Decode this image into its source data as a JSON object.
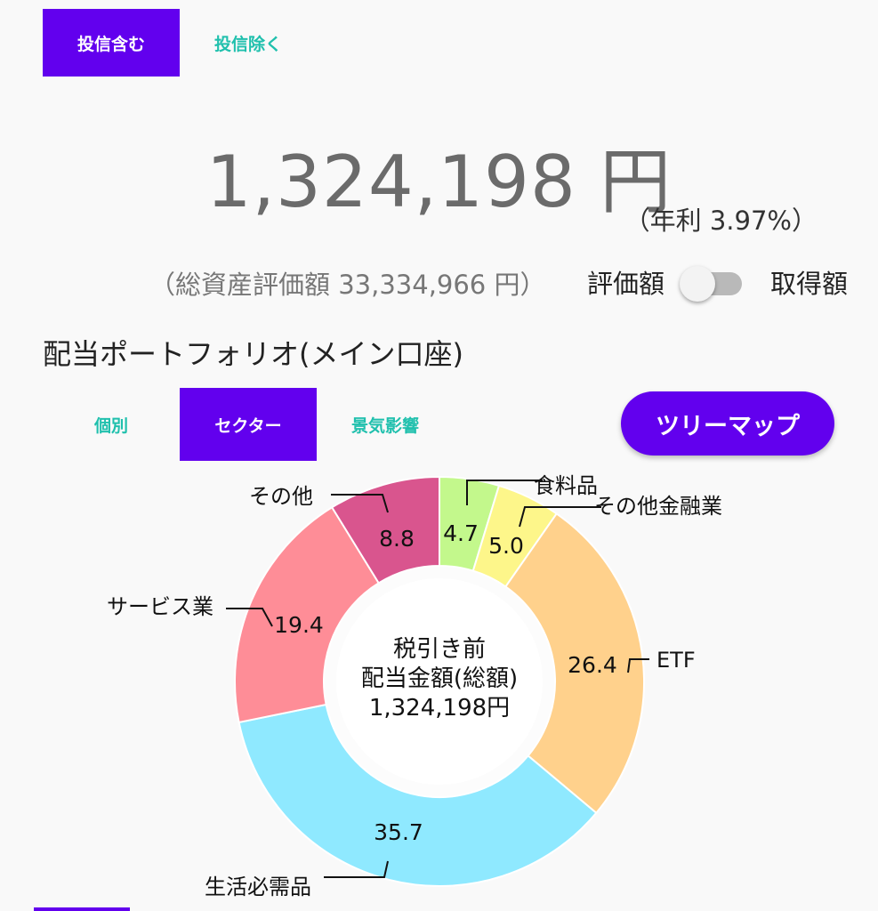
{
  "filter_tabs": {
    "include_funds": "投信含む",
    "exclude_funds": "投信除く"
  },
  "summary": {
    "amount": "1,324,198 円",
    "annual_rate": "（年利 3.97%）",
    "total_assets": "（総資産評価額 33,334,966 円）"
  },
  "toggle": {
    "left_label": "評価額",
    "right_label": "取得額",
    "state": "off"
  },
  "section_title": "配当ポートフォリオ(メイン口座)",
  "view_tabs": {
    "individual": "個別",
    "sector": "セクター",
    "economy": "景気影響"
  },
  "treemap_button": "ツリーマップ",
  "colors": {
    "accent": "#6200ee",
    "teal": "#20c0ad"
  },
  "chart_data": {
    "type": "pie",
    "donut": true,
    "center_label": [
      "税引き前",
      "配当金額(総額)",
      "1,324,198円"
    ],
    "slices": [
      {
        "label": "食料品",
        "value": 4.7,
        "display": "4.7",
        "color": "#c3f88c"
      },
      {
        "label": "その他金融業",
        "value": 5.0,
        "display": "5.0",
        "color": "#fdf68a"
      },
      {
        "label": "ETF",
        "value": 26.4,
        "display": "26.4",
        "color": "#ffd18c"
      },
      {
        "label": "生活必需品",
        "value": 35.7,
        "display": "35.7",
        "color": "#8fe9ff"
      },
      {
        "label": "サービス業",
        "value": 19.4,
        "display": "19.4",
        "color": "#fe8d97"
      },
      {
        "label": "その他",
        "value": 8.8,
        "display": "8.8",
        "color": "#d9558e"
      }
    ]
  }
}
